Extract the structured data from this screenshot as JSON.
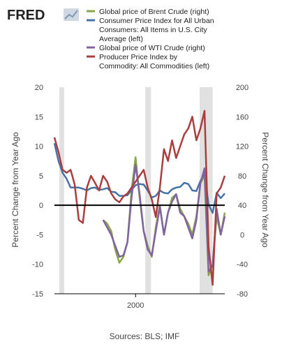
{
  "logo": {
    "text": "FRED",
    "icon": "fred-line-chart-icon"
  },
  "legend": [
    {
      "lines": [
        "Global price of Brent Crude (right)"
      ],
      "color": "#8BA448"
    },
    {
      "lines": [
        "Consumer Price Index for All Urban",
        "Consumers: All Items in U.S. City",
        "Average (left)"
      ],
      "color": "#4572A7"
    },
    {
      "lines": [
        "Global price of WTI Crude (right)"
      ],
      "color": "#8064A2"
    },
    {
      "lines": [
        "Producer Price Index by",
        "Commodity: All Commodities (left)"
      ],
      "color": "#AA3D3D"
    }
  ],
  "source": "Sources: BLS; IMF",
  "chart_data": {
    "type": "line",
    "x_tick": {
      "value": 2000,
      "label": "2000"
    },
    "xlim": [
      1990,
      2011
    ],
    "left_axis": {
      "label": "Percent Change from Year Ago",
      "ylim": [
        -15,
        20
      ],
      "ticks": [
        -15,
        -10,
        -5,
        0,
        5,
        10,
        15,
        20
      ]
    },
    "right_axis": {
      "label": "Percent Change from Year Ago",
      "ylim": [
        -80,
        200
      ],
      "ticks": [
        -80,
        -40,
        0,
        40,
        80,
        120,
        160,
        200
      ]
    },
    "zero_line_left": 0,
    "recessions": [
      [
        1990.6,
        1991.2
      ],
      [
        2001.2,
        2001.9
      ],
      [
        2007.9,
        2009.5
      ]
    ],
    "series": [
      {
        "name": "Global price of Brent Crude (right)",
        "axis": "right",
        "color": "#8BA448",
        "x": [
          1996.0,
          1996.5,
          1997.0,
          1997.5,
          1998.0,
          1998.5,
          1999.0,
          1999.5,
          2000.0,
          2000.5,
          2001.0,
          2001.5,
          2002.0,
          2002.5,
          2003.0,
          2003.5,
          2004.0,
          2004.5,
          2005.0,
          2005.5,
          2006.0,
          2006.5,
          2007.0,
          2007.5,
          2008.0,
          2008.5,
          2009.0,
          2009.5,
          2010.0,
          2010.5,
          2011.0
        ],
        "y": [
          20,
          15,
          5,
          -20,
          -38,
          -30,
          -10,
          60,
          105,
          50,
          5,
          -15,
          -30,
          10,
          40,
          0,
          30,
          50,
          55,
          35,
          25,
          15,
          0,
          25,
          70,
          80,
          -55,
          -40,
          25,
          0,
          30
        ]
      },
      {
        "name": "Consumer Price Index for All Urban Consumers: All Items in U.S. City Average (left)",
        "axis": "left",
        "color": "#4572A7",
        "x": [
          1990.0,
          1990.5,
          1991.0,
          1991.5,
          1992.0,
          1992.5,
          1993.0,
          1993.5,
          1994.0,
          1994.5,
          1995.0,
          1995.5,
          1996.0,
          1996.5,
          1997.0,
          1997.5,
          1998.0,
          1998.5,
          1999.0,
          1999.5,
          2000.0,
          2000.5,
          2001.0,
          2001.5,
          2002.0,
          2002.5,
          2003.0,
          2003.5,
          2004.0,
          2004.5,
          2005.0,
          2005.5,
          2006.0,
          2006.5,
          2007.0,
          2007.5,
          2008.0,
          2008.5,
          2009.0,
          2009.5,
          2010.0,
          2010.5,
          2011.0
        ],
        "y": [
          10.5,
          7.5,
          5.5,
          4.5,
          3.0,
          3.0,
          3.0,
          2.8,
          2.5,
          2.9,
          3.0,
          2.6,
          2.7,
          2.9,
          2.3,
          2.2,
          1.6,
          1.6,
          1.7,
          2.6,
          3.4,
          3.6,
          3.5,
          2.5,
          1.3,
          1.6,
          2.5,
          2.1,
          2.0,
          2.7,
          3.0,
          3.1,
          3.8,
          3.6,
          2.5,
          2.4,
          4.1,
          5.4,
          0.1,
          -1.3,
          2.1,
          1.2,
          2.0
        ]
      },
      {
        "name": "Global price of WTI Crude (right)",
        "axis": "right",
        "color": "#8064A2",
        "x": [
          1996.0,
          1996.5,
          1997.0,
          1997.5,
          1998.0,
          1998.5,
          1999.0,
          1999.5,
          2000.0,
          2000.5,
          2001.0,
          2001.5,
          2002.0,
          2002.5,
          2003.0,
          2003.5,
          2004.0,
          2004.5,
          2005.0,
          2005.5,
          2006.0,
          2006.5,
          2007.0,
          2007.5,
          2008.0,
          2008.5,
          2009.0,
          2009.5,
          2010.0,
          2010.5,
          2011.0
        ],
        "y": [
          20,
          10,
          0,
          -15,
          -30,
          -28,
          -10,
          50,
          95,
          55,
          5,
          -20,
          -28,
          5,
          38,
          0,
          30,
          45,
          55,
          30,
          25,
          10,
          -5,
          20,
          70,
          90,
          -50,
          -42,
          35,
          0,
          25
        ]
      },
      {
        "name": "Producer Price Index by Commodity: All Commodities (left)",
        "axis": "left",
        "color": "#AA3D3D",
        "x": [
          1990.0,
          1990.5,
          1991.0,
          1991.5,
          1992.0,
          1992.5,
          1993.0,
          1993.5,
          1994.0,
          1994.5,
          1995.0,
          1995.5,
          1996.0,
          1996.5,
          1997.0,
          1997.5,
          1998.0,
          1998.5,
          1999.0,
          1999.5,
          2000.0,
          2000.5,
          2001.0,
          2001.5,
          2002.0,
          2002.5,
          2003.0,
          2003.5,
          2004.0,
          2004.5,
          2005.0,
          2005.5,
          2006.0,
          2006.5,
          2007.0,
          2007.5,
          2008.0,
          2008.5,
          2009.0,
          2009.5,
          2010.0,
          2010.5,
          2011.0
        ],
        "y": [
          11.5,
          9.0,
          6.0,
          5.5,
          6.0,
          3.5,
          -2.5,
          -3.0,
          3.0,
          5.0,
          3.8,
          2.5,
          5.0,
          4.0,
          2.0,
          1.0,
          0.5,
          1.5,
          2.0,
          3.0,
          4.0,
          5.0,
          6.0,
          3.0,
          1.0,
          -2.0,
          3.0,
          9.5,
          7.5,
          11.0,
          8.0,
          10.0,
          12.0,
          13.0,
          15.0,
          11.0,
          13.0,
          16.0,
          -7.0,
          -13.5,
          2.0,
          3.0,
          5.0
        ]
      }
    ]
  }
}
